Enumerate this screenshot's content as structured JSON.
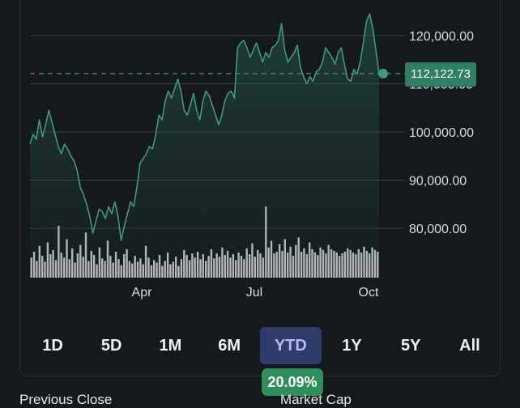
{
  "chart_data": {
    "type": "area",
    "ylim": [
      73000,
      128000
    ],
    "y_ticks": [
      "120,000.00",
      "110,000.00",
      "100,000.00",
      "90,000.00",
      "80,000.00"
    ],
    "y_tick_values": [
      120000,
      110000,
      100000,
      90000,
      80000
    ],
    "x_tick_labels": [
      "Apr",
      "Jul",
      "Oct"
    ],
    "last_price": 112122.73,
    "last_price_label": "112,122.73",
    "price_series": [
      97500,
      99500,
      98500,
      102500,
      99000,
      101500,
      104500,
      102000,
      99500,
      97000,
      95500,
      97500,
      96500,
      95000,
      94000,
      92000,
      88500,
      87000,
      85000,
      82500,
      79000,
      81500,
      84000,
      83500,
      82000,
      84500,
      83000,
      85500,
      82500,
      77500,
      80500,
      83000,
      85500,
      84500,
      88500,
      93500,
      94500,
      95500,
      97000,
      96500,
      99500,
      103500,
      102500,
      106500,
      108500,
      107000,
      109000,
      111000,
      108500,
      104500,
      103500,
      105500,
      108000,
      104500,
      102500,
      106500,
      108500,
      107500,
      105500,
      103500,
      101500,
      103500,
      106500,
      108000,
      108500,
      107000,
      117500,
      118500,
      119000,
      117500,
      115500,
      117000,
      118500,
      116500,
      114500,
      116500,
      115500,
      117500,
      118000,
      119000,
      122500,
      117000,
      114500,
      115500,
      116500,
      118000,
      113500,
      111500,
      110000,
      111500,
      110500,
      112500,
      113000,
      114500,
      117500,
      116500,
      115500,
      114000,
      116500,
      117500,
      114000,
      111000,
      110500,
      113000,
      112000,
      114500,
      118500,
      123000,
      124500,
      121500,
      117000,
      112122.73
    ],
    "volume_series": [
      2.4,
      3.1,
      2.0,
      3.8,
      2.6,
      1.9,
      4.2,
      2.8,
      3.3,
      2.1,
      6.2,
      3.0,
      2.4,
      4.6,
      2.2,
      3.5,
      1.8,
      2.9,
      3.9,
      2.5,
      5.4,
      2.0,
      3.2,
      2.7,
      1.6,
      3.6,
      2.3,
      2.0,
      4.4,
      2.6,
      1.8,
      3.1,
      2.2,
      1.5,
      2.8,
      3.4,
      2.0,
      1.7,
      2.6,
      1.9,
      2.3,
      1.6,
      3.8,
      2.4,
      1.5,
      2.1,
      1.8,
      2.7,
      1.4,
      2.0,
      3.0,
      1.6,
      1.9,
      2.5,
      1.4,
      2.2,
      3.3,
      2.7,
      2.1,
      2.9,
      2.4,
      3.1,
      2.2,
      2.8,
      2.0,
      2.6,
      3.4,
      2.3,
      2.9,
      2.5,
      3.6,
      2.7,
      3.2,
      2.4,
      2.8,
      2.1,
      3.0,
      2.6,
      2.2,
      3.5,
      2.8,
      4.1,
      2.5,
      3.3,
      2.9,
      2.4,
      8.5,
      3.6,
      4.4,
      2.9,
      3.1,
      4.0,
      3.2,
      4.6,
      3.0,
      3.7,
      2.6,
      3.9,
      4.8,
      3.1,
      3.5,
      2.8,
      4.2,
      3.4,
      3.0,
      2.7,
      3.6,
      3.3,
      2.9,
      3.9,
      3.4,
      3.2,
      3.0,
      2.6,
      2.9,
      3.1,
      3.5,
      3.3,
      3.0,
      2.8,
      3.4,
      3.0,
      3.7,
      3.2,
      2.9,
      3.6,
      3.3,
      3.1
    ]
  },
  "range_selector": {
    "tabs": [
      {
        "label": "1D",
        "active": false
      },
      {
        "label": "5D",
        "active": false
      },
      {
        "label": "1M",
        "active": false
      },
      {
        "label": "6M",
        "active": false
      },
      {
        "label": "YTD",
        "active": true
      },
      {
        "label": "1Y",
        "active": false
      },
      {
        "label": "5Y",
        "active": false
      },
      {
        "label": "All",
        "active": false
      }
    ]
  },
  "change": {
    "label": "20.09%"
  },
  "footer": {
    "previous_close_label": "Previous Close",
    "market_cap_label": "Market Cap"
  },
  "colors": {
    "background": "#15191e",
    "line": "#3d9b7b",
    "badge": "#2f7f62",
    "volume": "#b8bcc0",
    "grid": "#3a3f45",
    "active_tab_bg": "#2f3b6b",
    "active_tab_text": "#aebdf5",
    "change_pill": "#2e8f5c"
  }
}
